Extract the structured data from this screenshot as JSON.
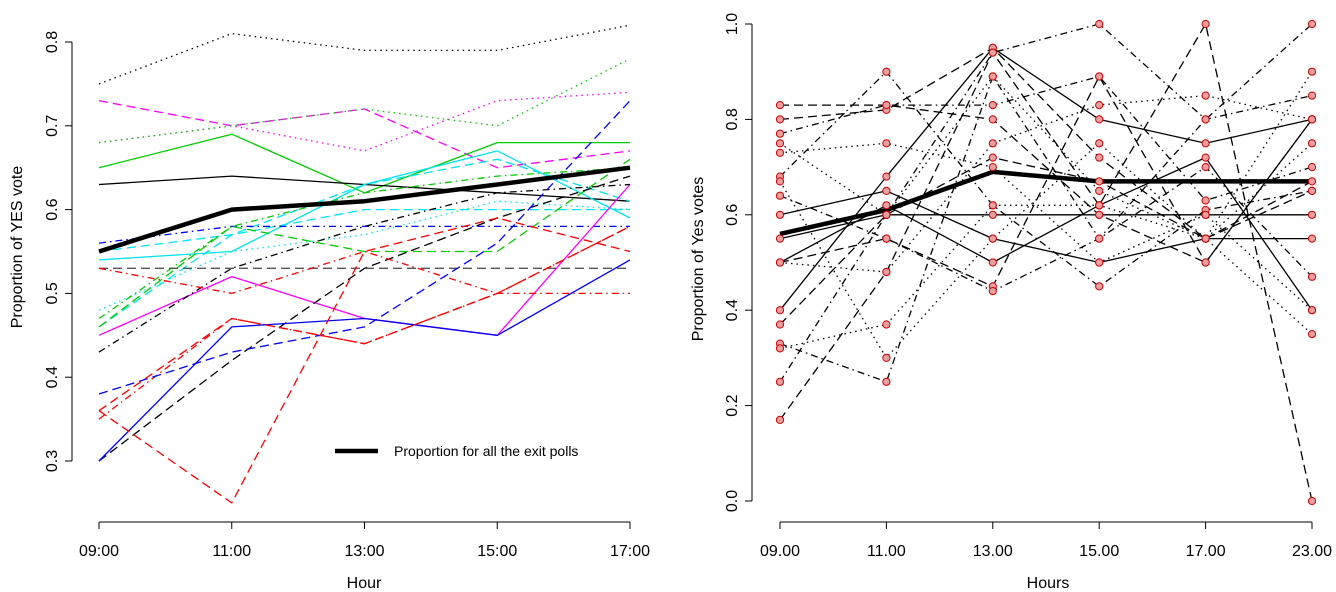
{
  "chart_data": [
    {
      "type": "line",
      "xlabel": "Hour",
      "ylabel": "Proportion of YES vote",
      "categories": [
        "09:00",
        "11:00",
        "13:00",
        "15:00",
        "17:00"
      ],
      "ylim": [
        0.3,
        0.8
      ],
      "yticks": [
        0.3,
        0.4,
        0.5,
        0.6,
        0.7,
        0.8
      ],
      "grid": false,
      "legend": {
        "position": "bottom-right",
        "entries": [
          {
            "label": "Proportion for all the exit polls"
          }
        ]
      },
      "series": [
        {
          "values": [
            0.75,
            0.81,
            0.79,
            0.79,
            0.82
          ],
          "color": "#000000",
          "style": "dotted"
        },
        {
          "values": [
            0.68,
            0.7,
            0.67,
            0.73,
            0.74
          ],
          "color": "#ff00ff",
          "style": "dotted"
        },
        {
          "values": [
            0.73,
            0.7,
            0.72,
            0.65,
            0.67
          ],
          "color": "#ff00ff",
          "style": "dashed"
        },
        {
          "values": [
            0.68,
            0.7,
            0.72,
            0.7,
            0.78
          ],
          "color": "#00cc00",
          "style": "dotted"
        },
        {
          "values": [
            0.65,
            0.69,
            0.62,
            0.68,
            0.68
          ],
          "color": "#00cc00",
          "style": "solid"
        },
        {
          "values": [
            0.63,
            0.64,
            0.63,
            0.62,
            0.61
          ],
          "color": "#000000",
          "style": "solid"
        },
        {
          "values": [
            0.54,
            0.55,
            0.63,
            0.67,
            0.59
          ],
          "color": "#00e5ee",
          "style": "solid"
        },
        {
          "values": [
            0.55,
            0.57,
            0.63,
            0.66,
            0.61
          ],
          "color": "#00e5ee",
          "style": "dashed"
        },
        {
          "values": [
            0.46,
            0.57,
            0.6,
            0.6,
            0.6
          ],
          "color": "#00e5ee",
          "style": "dashed"
        },
        {
          "values": [
            0.48,
            0.55,
            0.57,
            0.61,
            0.6
          ],
          "color": "#00e5ee",
          "style": "dotted"
        },
        {
          "values": [
            0.56,
            0.58,
            0.58,
            0.58,
            0.58
          ],
          "color": "#0000ff",
          "style": "dashdot"
        },
        {
          "values": [
            0.46,
            0.58,
            0.55,
            0.55,
            0.66
          ],
          "color": "#00cc00",
          "style": "dashed"
        },
        {
          "values": [
            0.47,
            0.58,
            0.62,
            0.64,
            0.65
          ],
          "color": "#00cc00",
          "style": "dashdot"
        },
        {
          "values": [
            0.45,
            0.52,
            0.47,
            0.45,
            0.63
          ],
          "color": "#ff00ff",
          "style": "solid"
        },
        {
          "values": [
            0.43,
            0.53,
            0.58,
            0.62,
            0.63
          ],
          "color": "#000000",
          "style": "dashdot"
        },
        {
          "values": [
            0.3,
            0.42,
            0.53,
            0.59,
            0.64
          ],
          "color": "#000000",
          "style": "dashed"
        },
        {
          "values": [
            0.53,
            0.53,
            0.53,
            0.53,
            0.53
          ],
          "color": "#555555",
          "style": "dashed"
        },
        {
          "values": [
            0.53,
            0.5,
            0.55,
            0.5,
            0.5
          ],
          "color": "#ff0000",
          "style": "dashdot"
        },
        {
          "values": [
            0.35,
            0.47,
            0.44,
            0.5,
            0.58
          ],
          "color": "#ff0000",
          "style": "dashdot"
        },
        {
          "values": [
            0.38,
            0.43,
            0.46,
            0.56,
            0.73
          ],
          "color": "#0000ff",
          "style": "dashed"
        },
        {
          "values": [
            0.3,
            0.46,
            0.47,
            0.45,
            0.54
          ],
          "color": "#0000ff",
          "style": "solid"
        },
        {
          "values": [
            0.36,
            0.25,
            0.55,
            0.59,
            0.55
          ],
          "color": "#ff0000",
          "style": "dashed"
        },
        {
          "values": [
            0.36,
            0.47,
            0.44,
            0.5,
            0.58
          ],
          "color": "#ff0000",
          "style": "dashed"
        },
        {
          "name": "Proportion for all the exit polls",
          "values": [
            0.55,
            0.6,
            0.61,
            0.63,
            0.65
          ],
          "color": "#000000",
          "style": "solid",
          "bold": true
        }
      ]
    },
    {
      "type": "line",
      "xlabel": "Hours",
      "ylabel": "Proportion of Yes votes",
      "categories": [
        "09.00",
        "11.00",
        "13.00",
        "15.00",
        "17.00",
        "23.00"
      ],
      "ylim": [
        0.0,
        1.0
      ],
      "yticks": [
        0.0,
        0.2,
        0.4,
        0.6,
        0.8,
        1.0
      ],
      "grid": false,
      "marker": {
        "shape": "circle",
        "fill": "#e8a0a0",
        "stroke": "#cc0000"
      },
      "series": [
        {
          "values": [
            0.6,
            0.65,
            0.55,
            0.5,
            0.55,
            0.55
          ],
          "color": "#000000",
          "style": "solid"
        },
        {
          "values": [
            0.4,
            0.68,
            0.95,
            0.8,
            0.75,
            0.8
          ],
          "color": "#000000",
          "style": "solid"
        },
        {
          "values": [
            0.5,
            0.62,
            0.5,
            0.62,
            0.72,
            0.4
          ],
          "color": "#000000",
          "style": "solid"
        },
        {
          "values": [
            0.55,
            0.6,
            0.6,
            0.6,
            0.6,
            0.6
          ],
          "color": "#000000",
          "style": "solid"
        },
        {
          "values": [
            0.83,
            0.83,
            0.8,
            0.6,
            0.5,
            0.8
          ],
          "color": "#000000",
          "style": "dashed"
        },
        {
          "values": [
            0.8,
            0.82,
            0.95,
            0.72,
            0.55,
            0.65
          ],
          "color": "#000000",
          "style": "dashed"
        },
        {
          "values": [
            0.17,
            0.48,
            0.94,
            0.62,
            1.0,
            0.0
          ],
          "color": "#000000",
          "style": "dashed"
        },
        {
          "values": [
            0.5,
            0.55,
            0.45,
            0.89,
            0.5,
            0.8
          ],
          "color": "#000000",
          "style": "dashed"
        },
        {
          "values": [
            0.37,
            0.6,
            0.72,
            0.67,
            0.55,
            0.67
          ],
          "color": "#000000",
          "style": "dashed"
        },
        {
          "values": [
            0.77,
            0.83,
            0.83,
            0.89,
            0.63,
            0.7
          ],
          "color": "#000000",
          "style": "dashdot"
        },
        {
          "values": [
            0.25,
            0.6,
            0.94,
            1.0,
            0.8,
            0.85
          ],
          "color": "#000000",
          "style": "dashdot"
        },
        {
          "values": [
            0.33,
            0.25,
            0.89,
            0.55,
            0.8,
            1.0
          ],
          "color": "#000000",
          "style": "dashdot"
        },
        {
          "values": [
            0.68,
            0.9,
            0.62,
            0.45,
            0.61,
            0.65
          ],
          "color": "#000000",
          "style": "dashdot"
        },
        {
          "values": [
            0.64,
            0.55,
            0.44,
            0.55,
            0.7,
            0.47
          ],
          "color": "#000000",
          "style": "dashdot"
        },
        {
          "values": [
            0.5,
            0.48,
            0.75,
            0.83,
            0.85,
            0.8
          ],
          "color": "#000000",
          "style": "dotted"
        },
        {
          "values": [
            0.73,
            0.75,
            0.7,
            0.5,
            0.6,
            0.4
          ],
          "color": "#000000",
          "style": "dotted"
        },
        {
          "values": [
            0.32,
            0.37,
            0.62,
            0.62,
            0.55,
            0.9
          ],
          "color": "#000000",
          "style": "dotted"
        },
        {
          "values": [
            0.67,
            0.3,
            0.55,
            0.75,
            0.55,
            0.35
          ],
          "color": "#000000",
          "style": "dotted"
        },
        {
          "values": [
            0.75,
            0.6,
            0.89,
            0.65,
            0.55,
            0.75
          ],
          "color": "#000000",
          "style": "dotted"
        },
        {
          "values": [
            0.56,
            0.61,
            0.69,
            0.67,
            0.67,
            0.67
          ],
          "color": "#000000",
          "style": "solid",
          "bold": true
        }
      ]
    }
  ]
}
